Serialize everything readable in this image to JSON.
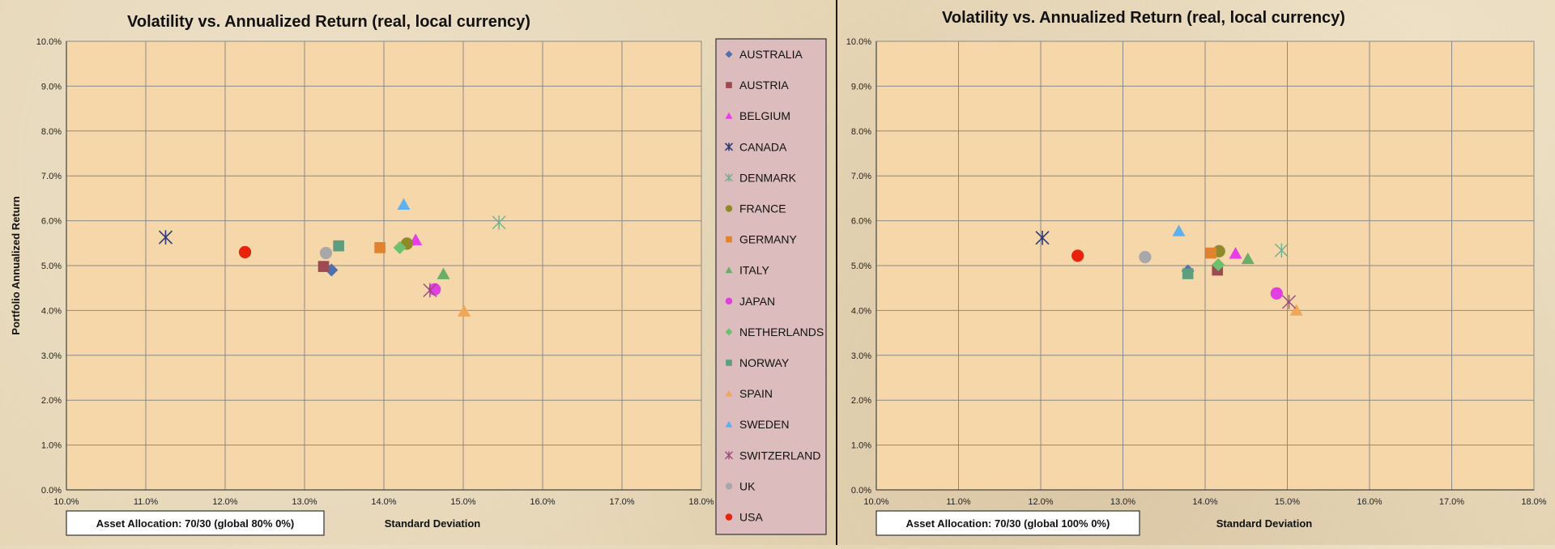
{
  "chart_data": [
    {
      "type": "scatter",
      "title": "Volatility vs. Annualized Return (real, local currency)",
      "xlabel": "Standard Deviation",
      "ylabel": "Portfolio Annualized Return",
      "xlim": [
        0.1,
        0.18
      ],
      "ylim": [
        0.0,
        0.1
      ],
      "x_ticks": [
        "10.0%",
        "11.0%",
        "12.0%",
        "13.0%",
        "14.0%",
        "15.0%",
        "16.0%",
        "17.0%",
        "18.0%"
      ],
      "y_ticks": [
        "0.0%",
        "1.0%",
        "2.0%",
        "3.0%",
        "4.0%",
        "5.0%",
        "6.0%",
        "7.0%",
        "8.0%",
        "9.0%",
        "10.0%"
      ],
      "grid": true,
      "legend_position": "right",
      "annotation": "Asset Allocation: 70/30  (global 80% 0%)",
      "series": [
        {
          "name": "AUSTRALIA",
          "x": 0.1334,
          "y": 0.049
        },
        {
          "name": "AUSTRIA",
          "x": 0.1324,
          "y": 0.0498
        },
        {
          "name": "BELGIUM",
          "x": 0.144,
          "y": 0.0557
        },
        {
          "name": "CANADA",
          "x": 0.1125,
          "y": 0.0563
        },
        {
          "name": "DENMARK",
          "x": 0.1545,
          "y": 0.0596
        },
        {
          "name": "FRANCE",
          "x": 0.1429,
          "y": 0.0549
        },
        {
          "name": "GERMANY",
          "x": 0.1395,
          "y": 0.054
        },
        {
          "name": "ITALY",
          "x": 0.1475,
          "y": 0.0481
        },
        {
          "name": "JAPAN",
          "x": 0.1464,
          "y": 0.0447
        },
        {
          "name": "NETHERLANDS",
          "x": 0.142,
          "y": 0.054
        },
        {
          "name": "NORWAY",
          "x": 0.1343,
          "y": 0.0544
        },
        {
          "name": "SPAIN",
          "x": 0.1501,
          "y": 0.0398
        },
        {
          "name": "SWEDEN",
          "x": 0.1425,
          "y": 0.0636
        },
        {
          "name": "SWITZERLAND",
          "x": 0.1458,
          "y": 0.0445
        },
        {
          "name": "UK",
          "x": 0.1327,
          "y": 0.0528
        },
        {
          "name": "USA",
          "x": 0.1225,
          "y": 0.053
        }
      ]
    },
    {
      "type": "scatter",
      "title": "Volatility vs. Annualized Return (real, local currency)",
      "xlabel": "Standard Deviation",
      "ylabel": "",
      "xlim": [
        0.1,
        0.18
      ],
      "ylim": [
        0.0,
        0.1
      ],
      "x_ticks": [
        "10.0%",
        "11.0%",
        "12.0%",
        "13.0%",
        "14.0%",
        "15.0%",
        "16.0%",
        "17.0%",
        "18.0%"
      ],
      "y_ticks": [
        "0.0%",
        "1.0%",
        "2.0%",
        "3.0%",
        "4.0%",
        "5.0%",
        "6.0%",
        "7.0%",
        "8.0%",
        "9.0%",
        "10.0%"
      ],
      "grid": true,
      "annotation": "Asset Allocation: 70/30  (global 100% 0%)",
      "series": [
        {
          "name": "AUSTRALIA",
          "x": 0.1379,
          "y": 0.0488
        },
        {
          "name": "AUSTRIA",
          "x": 0.1415,
          "y": 0.049
        },
        {
          "name": "BELGIUM",
          "x": 0.1437,
          "y": 0.0527
        },
        {
          "name": "CANADA",
          "x": 0.1202,
          "y": 0.0562
        },
        {
          "name": "DENMARK",
          "x": 0.1493,
          "y": 0.0534
        },
        {
          "name": "FRANCE",
          "x": 0.1417,
          "y": 0.0532
        },
        {
          "name": "GERMANY",
          "x": 0.1407,
          "y": 0.0528
        },
        {
          "name": "ITALY",
          "x": 0.1452,
          "y": 0.0515
        },
        {
          "name": "JAPAN",
          "x": 0.1487,
          "y": 0.0438
        },
        {
          "name": "NETHERLANDS",
          "x": 0.1416,
          "y": 0.0502
        },
        {
          "name": "NORWAY",
          "x": 0.1379,
          "y": 0.0482
        },
        {
          "name": "SPAIN",
          "x": 0.1511,
          "y": 0.04
        },
        {
          "name": "SWEDEN",
          "x": 0.1368,
          "y": 0.0577
        },
        {
          "name": "SWITZERLAND",
          "x": 0.1502,
          "y": 0.0419
        },
        {
          "name": "UK",
          "x": 0.1327,
          "y": 0.0519
        },
        {
          "name": "USA",
          "x": 0.1245,
          "y": 0.0522
        }
      ]
    }
  ],
  "legend": {
    "items": [
      {
        "name": "AUSTRALIA",
        "marker": "diamond",
        "color": "#4f6fad"
      },
      {
        "name": "AUSTRIA",
        "marker": "square",
        "color": "#9e4a52"
      },
      {
        "name": "BELGIUM",
        "marker": "triangle",
        "color": "#e83ee8"
      },
      {
        "name": "CANADA",
        "marker": "x",
        "color": "#2c3a78"
      },
      {
        "name": "DENMARK",
        "marker": "star",
        "color": "#6fae8e"
      },
      {
        "name": "FRANCE",
        "marker": "circle",
        "color": "#8e8a2a"
      },
      {
        "name": "GERMANY",
        "marker": "square",
        "color": "#e0822e"
      },
      {
        "name": "ITALY",
        "marker": "triangle",
        "color": "#6aae68"
      },
      {
        "name": "JAPAN",
        "marker": "circle",
        "color": "#e040e0"
      },
      {
        "name": "NETHERLANDS",
        "marker": "diamond",
        "color": "#6cc070"
      },
      {
        "name": "NORWAY",
        "marker": "square",
        "color": "#5e9e7e"
      },
      {
        "name": "SPAIN",
        "marker": "triangle",
        "color": "#f0a858"
      },
      {
        "name": "SWEDEN",
        "marker": "triangle",
        "color": "#5fb0ee"
      },
      {
        "name": "SWITZERLAND",
        "marker": "star",
        "color": "#9a4a7e"
      },
      {
        "name": "UK",
        "marker": "circle",
        "color": "#a8a8a8"
      },
      {
        "name": "USA",
        "marker": "circle",
        "color": "#e8220c"
      }
    ]
  },
  "colors": {
    "plot_bg": "#f6d7aa",
    "grid": "#8a8a8a",
    "legend_bg": "#dcbcbc",
    "text": "#111111"
  }
}
